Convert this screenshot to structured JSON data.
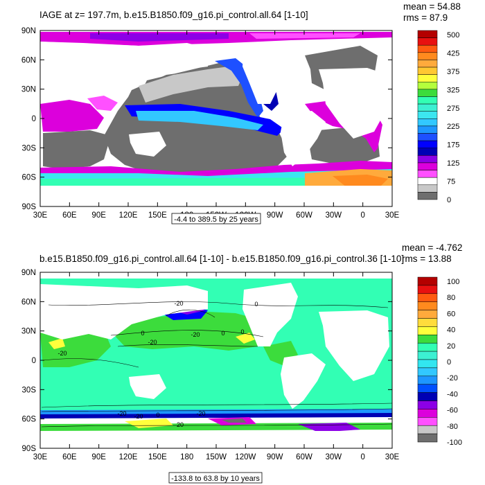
{
  "panels": [
    {
      "title": "IAGE at z= 197.7m, b.e15.B1850.f09_g16.pi_control.all.64 [1-10]",
      "mean_label": "mean = 54.88",
      "rms_label": "rms = 87.9",
      "range_label": "-4.4 to 389.5 by 25 years",
      "colorbar_labels": [
        "500",
        "425",
        "375",
        "325",
        "275",
        "225",
        "175",
        "125",
        "75",
        "0"
      ],
      "colorbar_colors": [
        "#b40000",
        "#e81010",
        "#ff5a10",
        "#ff8a1e",
        "#ffaa3c",
        "#ffc832",
        "#ffff3c",
        "#b4ff3c",
        "#3cdc3c",
        "#32ffb4",
        "#3cf0d2",
        "#3ce6f0",
        "#32c8ff",
        "#1e96ff",
        "#1e50ff",
        "#0000ff",
        "#0000b4",
        "#8c00e6",
        "#dc00dc",
        "#ff50ff",
        "#ffffff",
        "#c8c8c8",
        "#6e6e6e"
      ]
    },
    {
      "title": "b.e15.B1850.f09_g16.pi_control.all.64 [1-10] - b.e15.B1850.f09_g16.pi_control.36 [1-10]",
      "mean_label": "mean = -4.762",
      "rms_label": "rms = 13.88",
      "range_label": "-133.8 to 63.8 by 10 years",
      "colorbar_labels": [
        "100",
        "80",
        "60",
        "40",
        "20",
        "0",
        "-20",
        "-40",
        "-60",
        "-80",
        "-100"
      ],
      "colorbar_colors": [
        "#b40000",
        "#e81010",
        "#ff5a10",
        "#ff8a1e",
        "#ffaa3c",
        "#ffdc3c",
        "#ffff3c",
        "#3cdc3c",
        "#32ffb4",
        "#3cf0d2",
        "#32e6f0",
        "#32c8ff",
        "#1e96ff",
        "#0050ff",
        "#0000b4",
        "#8c00e6",
        "#dc00dc",
        "#ff50ff",
        "#c8c8c8",
        "#6e6e6e"
      ]
    }
  ],
  "x_tick_labels": [
    "30E",
    "60E",
    "90E",
    "120E",
    "150E",
    "180",
    "150W",
    "120W",
    "90W",
    "60W",
    "30W",
    "0",
    "30E"
  ],
  "y_tick_labels": [
    "90N",
    "60N",
    "30N",
    "0",
    "30S",
    "60S",
    "90S"
  ],
  "contour_labels": [
    "-20",
    "-20",
    "0",
    "-20",
    "0",
    "0",
    "-20",
    "-20",
    "0",
    "-20",
    "20",
    "-20",
    "0"
  ]
}
